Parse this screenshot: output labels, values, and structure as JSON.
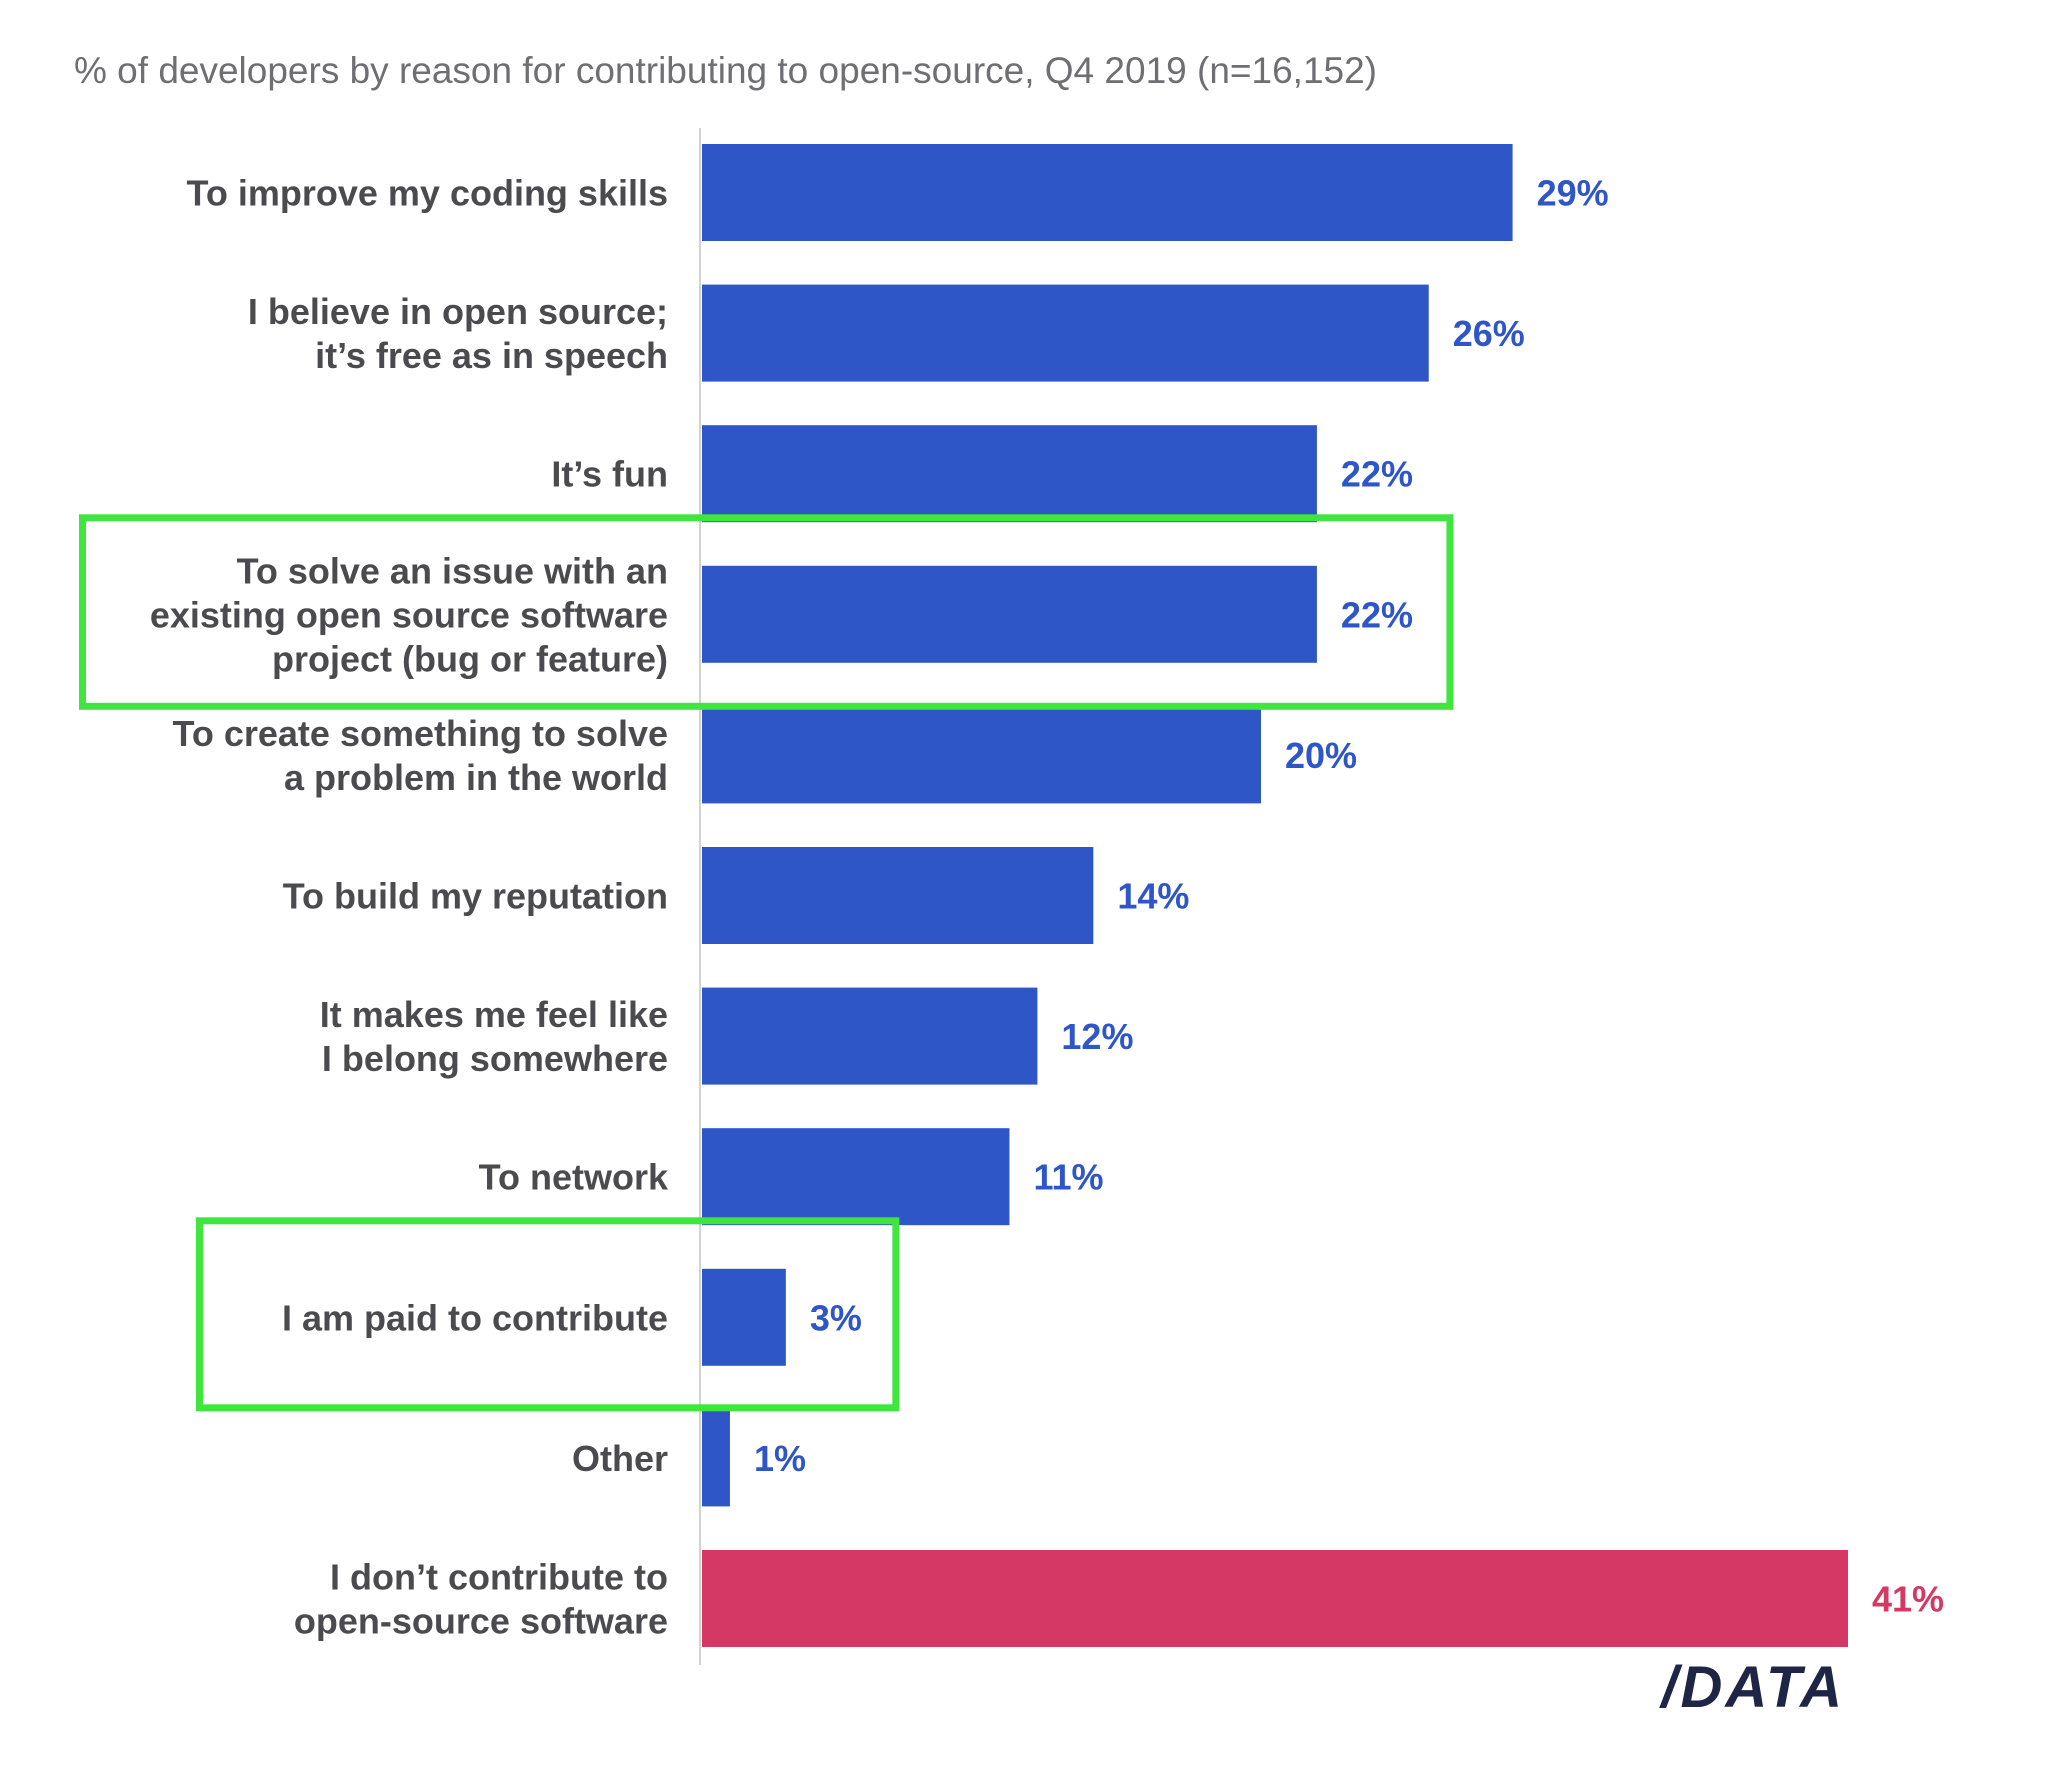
{
  "chart_data": {
    "type": "bar",
    "orientation": "horizontal",
    "title": "% of developers by reason for contributing to open-source, Q4 2019 (n=16,152)",
    "categories": [
      [
        "To improve my coding skills"
      ],
      [
        "I believe in open source;",
        "it’s free as in speech"
      ],
      [
        "It’s fun"
      ],
      [
        "To solve an issue with an",
        "existing open source software",
        "project (bug or feature)"
      ],
      [
        "To create something to solve",
        "a problem in the world"
      ],
      [
        "To build my reputation"
      ],
      [
        "It makes me feel like",
        "I belong somewhere"
      ],
      [
        "To network"
      ],
      [
        "I am paid to contribute"
      ],
      [
        "Other"
      ],
      [
        "I don’t contribute to",
        "open-source software"
      ]
    ],
    "values": [
      29,
      26,
      22,
      22,
      20,
      14,
      12,
      11,
      3,
      1,
      41
    ],
    "value_labels": [
      "29%",
      "26%",
      "22%",
      "22%",
      "20%",
      "14%",
      "12%",
      "11%",
      "3%",
      "1%",
      "41%"
    ],
    "bar_colors": [
      "#2e56c6",
      "#2e56c6",
      "#2e56c6",
      "#2e56c6",
      "#2e56c6",
      "#2e56c6",
      "#2e56c6",
      "#2e56c6",
      "#2e56c6",
      "#2e56c6",
      "#d63864"
    ],
    "highlighted": [
      3,
      8
    ],
    "highlight_color": "#3ee63e",
    "xlim": [
      0,
      41
    ],
    "grid": false,
    "legend": "none",
    "brand": "/DATA"
  }
}
